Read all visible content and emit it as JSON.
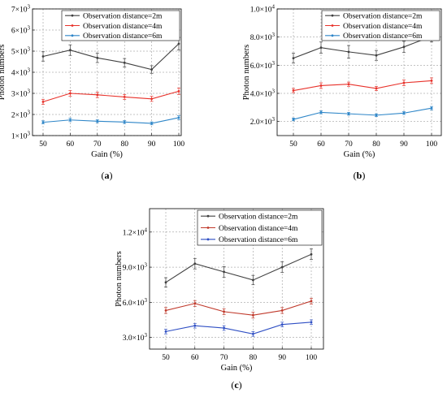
{
  "chart_data": [
    {
      "type": "line",
      "panel_label": "a",
      "x": [
        50,
        60,
        70,
        80,
        90,
        100
      ],
      "xlabel": "Gain (%)",
      "ylabel": "Photon numbers",
      "ylim": [
        1000,
        7000
      ],
      "yticks": [
        1000,
        2000,
        3000,
        4000,
        5000,
        6000,
        7000
      ],
      "ytick_labels": [
        {
          "m": "1",
          "e": "3"
        },
        {
          "m": "2",
          "e": "3"
        },
        {
          "m": "3",
          "e": "3"
        },
        {
          "m": "4",
          "e": "3"
        },
        {
          "m": "5",
          "e": "3"
        },
        {
          "m": "6",
          "e": "3"
        },
        {
          "m": "7",
          "e": "3"
        }
      ],
      "grid": true,
      "legend_position": "top-right",
      "series": [
        {
          "name": "Observation distance=2m",
          "color": "#404040",
          "values": [
            4750,
            5050,
            4680,
            4450,
            4130,
            5350
          ],
          "err": [
            220,
            250,
            220,
            200,
            180,
            300
          ]
        },
        {
          "name": "Observation distance=4m",
          "color": "#e8312a",
          "values": [
            2600,
            3000,
            2930,
            2830,
            2740,
            3100
          ],
          "err": [
            120,
            130,
            130,
            120,
            120,
            150
          ]
        },
        {
          "name": "Observation distance=6m",
          "color": "#2e86c8",
          "values": [
            1630,
            1740,
            1680,
            1640,
            1580,
            1850
          ],
          "err": [
            70,
            80,
            70,
            70,
            70,
            90
          ]
        }
      ]
    },
    {
      "type": "line",
      "panel_label": "b",
      "x": [
        50,
        60,
        70,
        80,
        90,
        100
      ],
      "xlabel": "Gain (%)",
      "ylabel": "Photon numbers",
      "ylim": [
        1000,
        10000
      ],
      "yticks": [
        2000,
        4000,
        6000,
        8000,
        10000
      ],
      "ytick_labels": [
        {
          "m": "2.0",
          "e": "3"
        },
        {
          "m": "4.0",
          "e": "3"
        },
        {
          "m": "6.0",
          "e": "3"
        },
        {
          "m": "8.0",
          "e": "3"
        },
        {
          "m": "1.0",
          "e": "4"
        }
      ],
      "grid": true,
      "legend_position": "top-right",
      "series": [
        {
          "name": "Observation distance=2m",
          "color": "#404040",
          "values": [
            6500,
            7250,
            6950,
            6700,
            7300,
            8050
          ],
          "err": [
            350,
            400,
            450,
            350,
            400,
            400
          ]
        },
        {
          "name": "Observation distance=4m",
          "color": "#e8312a",
          "values": [
            4200,
            4550,
            4650,
            4350,
            4750,
            4900
          ],
          "err": [
            150,
            200,
            150,
            150,
            200,
            200
          ]
        },
        {
          "name": "Observation distance=6m",
          "color": "#2e86c8",
          "values": [
            2150,
            2650,
            2550,
            2450,
            2600,
            2950
          ],
          "err": [
            100,
            100,
            100,
            100,
            100,
            120
          ]
        }
      ]
    },
    {
      "type": "line",
      "panel_label": "c",
      "x": [
        50,
        60,
        70,
        80,
        90,
        100
      ],
      "xlabel": "Gain (%)",
      "ylabel": "Photon numbers",
      "ylim": [
        2000,
        14000
      ],
      "yticks": [
        3000,
        6000,
        9000,
        12000
      ],
      "ytick_labels": [
        {
          "m": "3.0",
          "e": "3"
        },
        {
          "m": "6.0",
          "e": "3"
        },
        {
          "m": "9.0",
          "e": "3"
        },
        {
          "m": "1.2",
          "e": "4"
        }
      ],
      "grid": true,
      "legend_position": "top-right",
      "series": [
        {
          "name": "Observation distance=2m",
          "color": "#404040",
          "values": [
            7700,
            9300,
            8600,
            7900,
            9000,
            10100
          ],
          "err": [
            400,
            450,
            450,
            400,
            450,
            450
          ]
        },
        {
          "name": "Observation distance=4m",
          "color": "#c0392b",
          "values": [
            5300,
            5900,
            5200,
            4900,
            5300,
            6100
          ],
          "err": [
            250,
            250,
            250,
            250,
            250,
            250
          ]
        },
        {
          "name": "Observation distance=6m",
          "color": "#2f4fc4",
          "values": [
            3500,
            4000,
            3800,
            3300,
            4100,
            4300
          ],
          "err": [
            200,
            200,
            200,
            200,
            200,
            200
          ]
        }
      ]
    }
  ]
}
